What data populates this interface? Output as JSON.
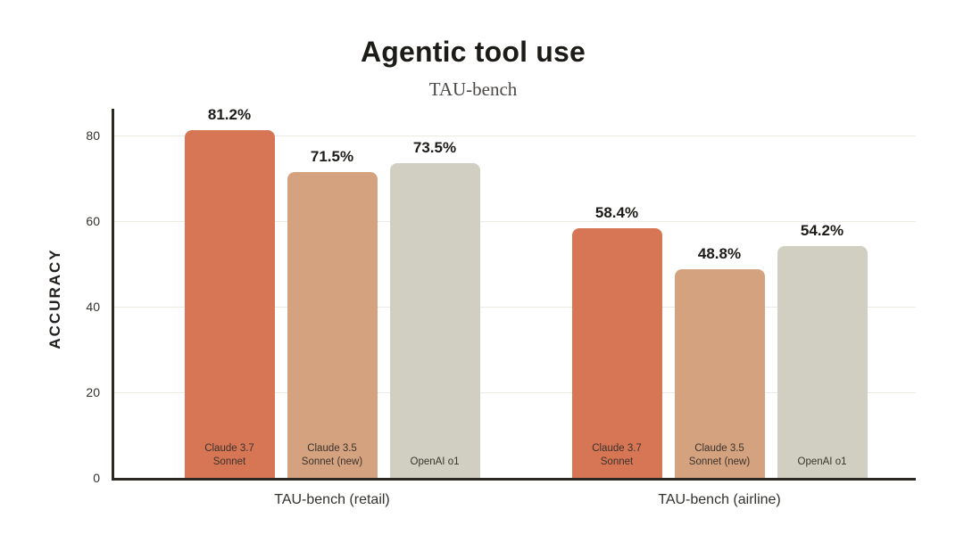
{
  "chart_data": {
    "type": "bar",
    "title": "Agentic tool use",
    "subtitle": "TAU-bench",
    "xlabel": "",
    "ylabel": "ACCURACY",
    "categories": [
      "TAU-bench (retail)",
      "TAU-bench (airline)"
    ],
    "series": [
      {
        "name": "Claude 3.7 Sonnet",
        "bar_label": "Claude 3.7\nSonnet",
        "color": "#D77655",
        "values": [
          81.2,
          58.4
        ],
        "value_labels": [
          "81.2%",
          "58.4%"
        ]
      },
      {
        "name": "Claude 3.5 Sonnet (new)",
        "bar_label": "Claude 3.5\nSonnet (new)",
        "color": "#D4A27F",
        "values": [
          71.5,
          48.8
        ],
        "value_labels": [
          "71.5%",
          "48.8%"
        ]
      },
      {
        "name": "OpenAI o1",
        "bar_label": "OpenAI o1",
        "color": "#D1CFC2",
        "values": [
          73.5,
          54.2
        ],
        "value_labels": [
          "73.5%",
          "54.2%"
        ]
      }
    ],
    "yticks": [
      0,
      20,
      40,
      60,
      80
    ],
    "ylim": [
      0,
      86.25
    ],
    "grid": true,
    "legend_position": "none (series labeled inside bars)",
    "colors": {
      "background": "#FFFFFF",
      "axis": "#2B2823",
      "gridline": "#ECEAE3",
      "title_text": "#1D1B18",
      "subtitle_text": "#4C4A46",
      "tick_text": "#34322E",
      "bar_label_text": "#3A332C"
    }
  }
}
